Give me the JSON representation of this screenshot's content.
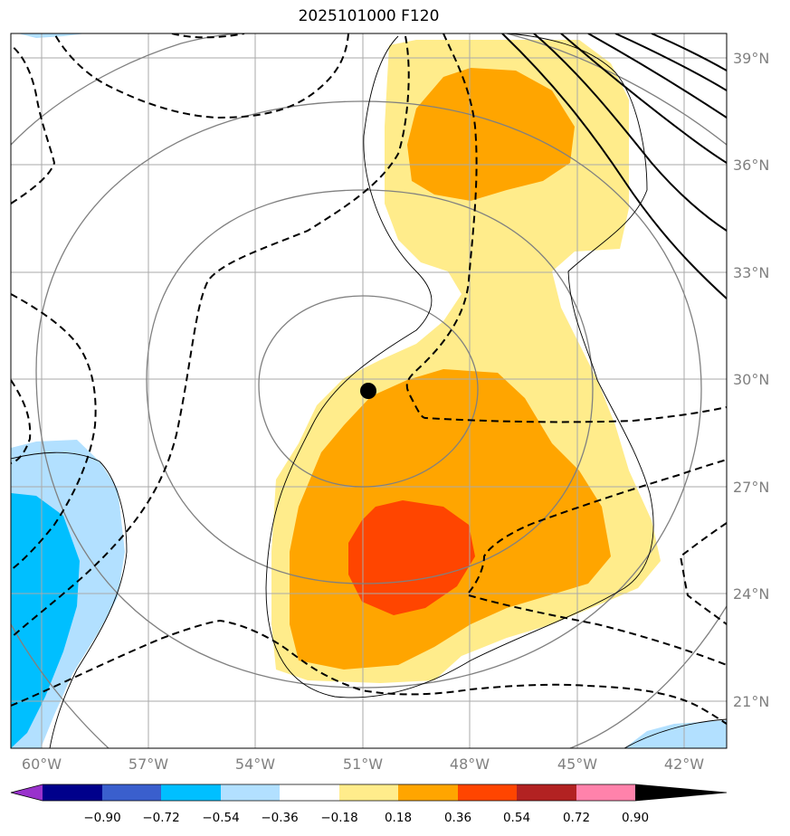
{
  "title": "2025101000 F120",
  "map": {
    "lon_ticks": [
      "60°W",
      "57°W",
      "54°W",
      "51°W",
      "48°W",
      "45°W",
      "42°W"
    ],
    "lat_ticks": [
      "39°N",
      "36°N",
      "33°N",
      "30°N",
      "27°N",
      "24°N",
      "21°N"
    ],
    "storm_center": {
      "lon": -50.8,
      "lat": 29.7
    }
  },
  "colorbar": {
    "labels": [
      "−0.90",
      "−0.72",
      "−0.54",
      "−0.36",
      "−0.18",
      "0.18",
      "0.36",
      "0.54",
      "0.72",
      "0.90"
    ],
    "colors": [
      "#9932cc",
      "#00008b",
      "#3a5fcd",
      "#00bfff",
      "#b2e0ff",
      "#ffffff",
      "#ffec8b",
      "#ffa500",
      "#ff4500",
      "#b22222",
      "#ff82ab"
    ]
  }
}
